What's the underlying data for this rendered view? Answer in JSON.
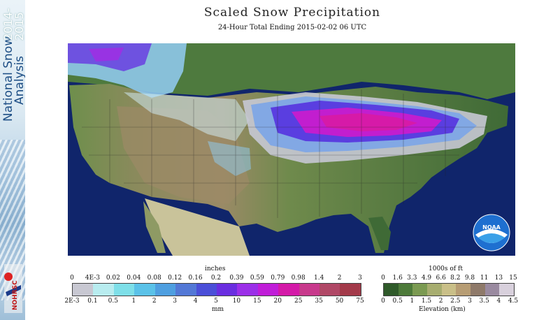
{
  "sidebar": {
    "title_line1": "National Snow",
    "title_line2": "Analysis",
    "year_line1": "2014-",
    "year_line2": "2015",
    "logo_text": "NOHRSC"
  },
  "header": {
    "title": "Scaled Snow Precipitation",
    "subtitle": "24-Hour Total Ending 2015-02-02 06 UTC"
  },
  "map": {
    "logo_text": "NOAA"
  },
  "precip_legend": {
    "top_unit": "inches",
    "bottom_unit": "mm",
    "top_ticks": [
      "0",
      "4E-3",
      "0.02",
      "0.04",
      "0.08",
      "0.12",
      "0.16",
      "0.2",
      "0.39",
      "0.59",
      "0.79",
      "0.98",
      "1.4",
      "2",
      "3"
    ],
    "bottom_ticks": [
      "2E-3",
      "0.1",
      "0.5",
      "1",
      "2",
      "3",
      "4",
      "5",
      "10",
      "15",
      "20",
      "25",
      "35",
      "50",
      "75"
    ],
    "colors": [
      "#c8c8d2",
      "#b8ecef",
      "#7edfe8",
      "#5bc2e8",
      "#4f9fe0",
      "#5378d6",
      "#4b4fd8",
      "#6a2ee0",
      "#9b30e8",
      "#c01ed8",
      "#d41aa8",
      "#c83a8c",
      "#b04866",
      "#a33a4a"
    ]
  },
  "elevation_legend": {
    "top_unit": "1000s of ft",
    "bottom_label": "Elevation (km)",
    "top_ticks": [
      "0",
      "1.6",
      "3.3",
      "4.9",
      "6.6",
      "8.2",
      "9.8",
      "11",
      "13",
      "15"
    ],
    "bottom_ticks": [
      "0",
      "0.5",
      "1",
      "1.5",
      "2",
      "2.5",
      "3",
      "3.5",
      "4",
      "4.5"
    ],
    "colors": [
      "#2f5a2a",
      "#4d7a3a",
      "#7b9a52",
      "#a7ad70",
      "#c9bf88",
      "#b79d74",
      "#8f7a6a",
      "#9a8aa0",
      "#d8d0dc"
    ]
  }
}
